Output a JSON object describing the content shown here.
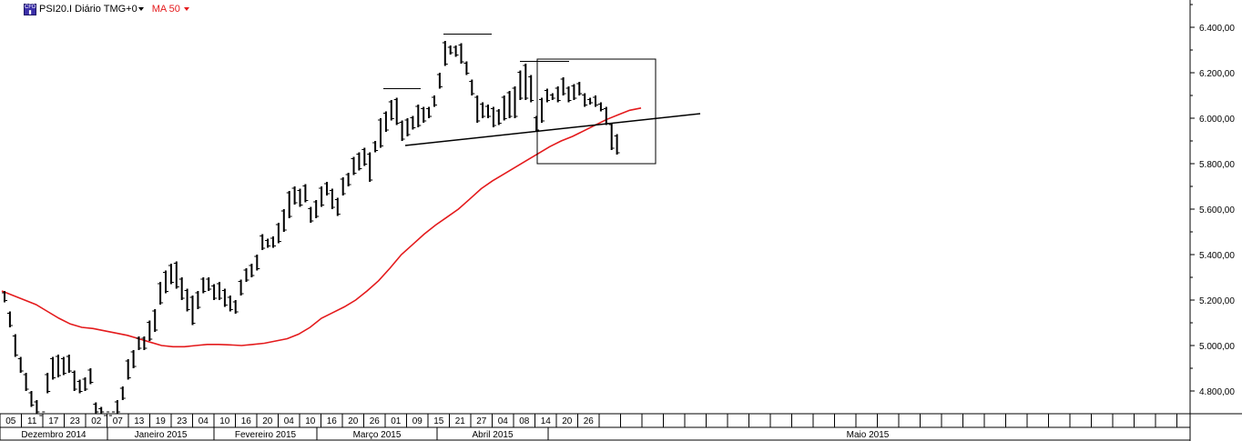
{
  "header": {
    "symbol_label": "PSI20.I Diário TMG+0",
    "indicator_label": "MA 50",
    "logo_icon": "cfd-logo-icon"
  },
  "colors": {
    "price_bars": "#000000",
    "ma_line": "#e41a1c",
    "trendline": "#000000",
    "grid": "#000000"
  },
  "chart_data": {
    "type": "line",
    "title": "PSI20.I Diário TMG+0",
    "ylim": [
      4700,
      6520
    ],
    "grid": false,
    "y_ticks": [
      "6.400,00",
      "6.200,00",
      "6.000,00",
      "5.800,00",
      "5.600,00",
      "5.400,00",
      "5.200,00",
      "5.000,00",
      "4.800,00"
    ],
    "y_tick_values": [
      6400,
      6200,
      6000,
      5800,
      5600,
      5400,
      5200,
      5000,
      4800
    ],
    "x_day_labels": [
      "05",
      "11",
      "17",
      "23",
      "02",
      "07",
      "13",
      "19",
      "23",
      "04",
      "10",
      "16",
      "20",
      "04",
      "10",
      "16",
      "20",
      "26",
      "01",
      "09",
      "15",
      "21",
      "27",
      "04",
      "08",
      "14",
      "20",
      "26"
    ],
    "x_month_labels": [
      "Dezembro 2014",
      "Janeiro 2015",
      "Fevereiro 2015",
      "Março 2015",
      "Abril 2015",
      "Maio 2015"
    ],
    "price_bars": [
      [
        5240,
        5190
      ],
      [
        5150,
        5080
      ],
      [
        5050,
        4950
      ],
      [
        4950,
        4880
      ],
      [
        4880,
        4800
      ],
      [
        4800,
        4730
      ],
      [
        4760,
        4700
      ],
      [
        4700,
        4700
      ],
      [
        4880,
        4790
      ],
      [
        4950,
        4850
      ],
      [
        4960,
        4860
      ],
      [
        4950,
        4870
      ],
      [
        4960,
        4880
      ],
      [
        4890,
        4800
      ],
      [
        4850,
        4790
      ],
      [
        4860,
        4800
      ],
      [
        4900,
        4830
      ],
      [
        4750,
        4700
      ],
      [
        4730,
        4700
      ],
      [
        4700,
        4700
      ],
      [
        4700,
        4700
      ],
      [
        4760,
        4700
      ],
      [
        4820,
        4760
      ],
      [
        4940,
        4850
      ],
      [
        4980,
        4900
      ],
      [
        5040,
        4980
      ],
      [
        5040,
        4980
      ],
      [
        5110,
        5020
      ],
      [
        5160,
        5060
      ],
      [
        5280,
        5180
      ],
      [
        5330,
        5230
      ],
      [
        5360,
        5270
      ],
      [
        5370,
        5250
      ],
      [
        5300,
        5200
      ],
      [
        5250,
        5150
      ],
      [
        5220,
        5090
      ],
      [
        5240,
        5160
      ],
      [
        5300,
        5230
      ],
      [
        5300,
        5240
      ],
      [
        5270,
        5200
      ],
      [
        5280,
        5200
      ],
      [
        5250,
        5170
      ],
      [
        5220,
        5150
      ],
      [
        5200,
        5140
      ],
      [
        5290,
        5220
      ],
      [
        5340,
        5280
      ],
      [
        5360,
        5300
      ],
      [
        5400,
        5330
      ],
      [
        5490,
        5420
      ],
      [
        5470,
        5430
      ],
      [
        5480,
        5430
      ],
      [
        5540,
        5450
      ],
      [
        5600,
        5500
      ],
      [
        5680,
        5560
      ],
      [
        5700,
        5620
      ],
      [
        5690,
        5610
      ],
      [
        5710,
        5630
      ],
      [
        5610,
        5540
      ],
      [
        5640,
        5560
      ],
      [
        5700,
        5610
      ],
      [
        5720,
        5660
      ],
      [
        5690,
        5600
      ],
      [
        5650,
        5570
      ],
      [
        5740,
        5660
      ],
      [
        5760,
        5700
      ],
      [
        5830,
        5750
      ],
      [
        5850,
        5770
      ],
      [
        5870,
        5790
      ],
      [
        5850,
        5720
      ],
      [
        5900,
        5850
      ],
      [
        6000,
        5870
      ],
      [
        6030,
        5940
      ],
      [
        6080,
        5990
      ],
      [
        6090,
        5970
      ],
      [
        5990,
        5900
      ],
      [
        6000,
        5920
      ],
      [
        6010,
        5950
      ],
      [
        6060,
        5960
      ],
      [
        6050,
        5980
      ],
      [
        6050,
        6000
      ],
      [
        6100,
        6050
      ],
      [
        6200,
        6130
      ],
      [
        6340,
        6230
      ],
      [
        6320,
        6280
      ],
      [
        6320,
        6270
      ],
      [
        6330,
        6240
      ],
      [
        6250,
        6190
      ],
      [
        6170,
        6100
      ],
      [
        6100,
        5980
      ],
      [
        6070,
        6000
      ],
      [
        6060,
        6000
      ],
      [
        6050,
        5960
      ],
      [
        6040,
        5970
      ],
      [
        6100,
        5990
      ],
      [
        6120,
        6000
      ],
      [
        6140,
        6000
      ],
      [
        6210,
        6080
      ],
      [
        6240,
        6080
      ],
      [
        6190,
        6070
      ],
      [
        6010,
        5940
      ],
      [
        6090,
        5980
      ],
      [
        6130,
        6070
      ],
      [
        6110,
        6080
      ],
      [
        6140,
        6070
      ],
      [
        6180,
        6100
      ],
      [
        6140,
        6070
      ],
      [
        6150,
        6080
      ],
      [
        6160,
        6100
      ],
      [
        6110,
        6050
      ],
      [
        6090,
        6060
      ],
      [
        6100,
        6050
      ],
      [
        6070,
        6030
      ],
      [
        6050,
        5970
      ],
      [
        5980,
        5860
      ],
      [
        5930,
        5840
      ]
    ],
    "ma50": [
      5240,
      5220,
      5200,
      5180,
      5150,
      5120,
      5095,
      5080,
      5075,
      5065,
      5055,
      5045,
      5030,
      5015,
      5000,
      4995,
      4995,
      5000,
      5005,
      5005,
      5003,
      5000,
      5005,
      5010,
      5020,
      5030,
      5050,
      5080,
      5120,
      5145,
      5170,
      5200,
      5240,
      5285,
      5340,
      5400,
      5445,
      5490,
      5530,
      5565,
      5600,
      5645,
      5690,
      5725,
      5755,
      5785,
      5815,
      5845,
      5875,
      5900,
      5920,
      5945,
      5970,
      5995,
      6015,
      6035,
      6045
    ],
    "trendline": [
      [
        5880,
        6020
      ]
    ],
    "annotations": [
      {
        "type": "resistance-line",
        "value": 6130
      },
      {
        "type": "resistance-line",
        "value": 6370
      },
      {
        "type": "resistance-line",
        "value": 6250
      },
      {
        "type": "rectangle",
        "from": 6260,
        "to": 5800
      }
    ]
  }
}
